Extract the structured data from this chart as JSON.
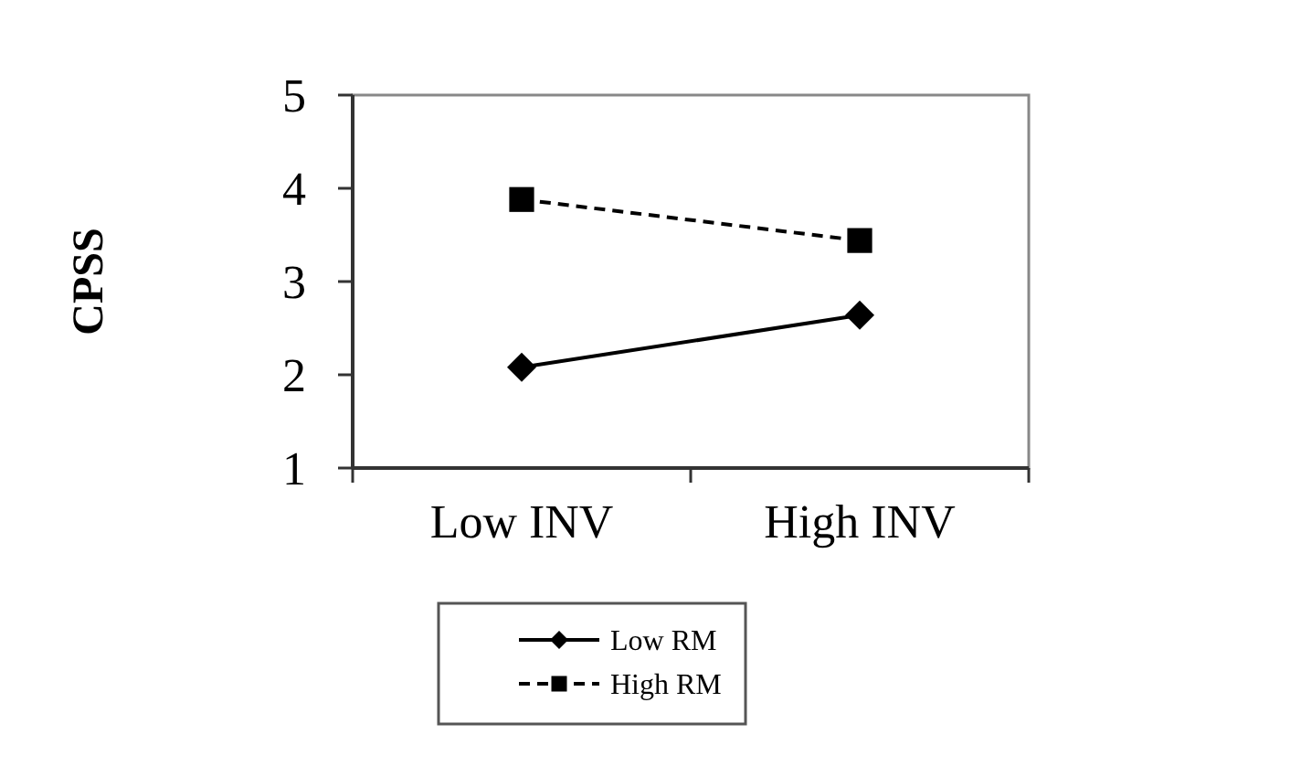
{
  "chart_data": {
    "type": "line",
    "ylabel": "CPSS",
    "categories": [
      "Low INV",
      "High INV"
    ],
    "series": [
      {
        "name": "Low RM",
        "color": "#000000",
        "values": [
          2.08,
          2.64
        ],
        "marker": "diamond",
        "line_style": "solid"
      },
      {
        "name": "High RM",
        "color": "#000000",
        "values": [
          3.88,
          3.44
        ],
        "marker": "square",
        "line_style": "dashed"
      }
    ],
    "ylim": [
      1,
      5
    ],
    "yticks": [
      1,
      2,
      3,
      4,
      5
    ],
    "grid": false,
    "legend": "bottom"
  }
}
